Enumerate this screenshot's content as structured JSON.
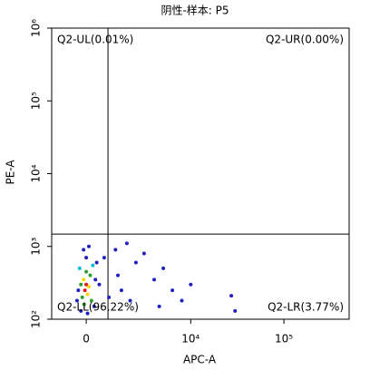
{
  "chart_data": {
    "type": "scatter",
    "title": "阴性-样本: P5",
    "x_label": "APC-A",
    "y_label": "PE-A",
    "xscale": "biexponential",
    "yscale": "log",
    "xlim": [
      -1464,
      500000
    ],
    "ylim": [
      100,
      1000000
    ],
    "xticks": [
      0,
      {
        "value": 10000,
        "label": "10⁴"
      },
      {
        "value": 100000,
        "label": "10⁵"
      }
    ],
    "yticks": [
      {
        "value": 100,
        "label": "10²"
      },
      {
        "value": 1000,
        "label": "10³"
      },
      {
        "value": 10000,
        "label": "10⁴"
      },
      {
        "value": 100000,
        "label": "10⁵"
      },
      {
        "value": 1000000,
        "label": "10⁶"
      }
    ],
    "gate": {
      "x": 860,
      "y": 1480
    },
    "quadrant_labels": {
      "UL": "Q2-UL(0.01%)",
      "UR": "Q2-UR(0.00%)",
      "LL": "Q2-LL(96.22%)",
      "LR": "Q2-LR(3.77%)"
    },
    "points": {
      "x": [
        -50,
        0,
        50,
        -100,
        100,
        -150,
        150,
        -200,
        200,
        0,
        -80,
        -250,
        250,
        -300,
        300,
        0,
        -100,
        100,
        350,
        -350,
        400,
        -200,
        500,
        50,
        1320,
        1500,
        2379,
        2000,
        3940,
        3000,
        6300,
        5000,
        10000,
        8000,
        27350,
        30000,
        1200,
        1800,
        4500,
        900,
        700
      ],
      "y": [
        250,
        300,
        220,
        350,
        280,
        200,
        400,
        300,
        180,
        450,
        160,
        500,
        550,
        250,
        150,
        700,
        900,
        1000,
        350,
        180,
        600,
        130,
        300,
        120,
        400,
        250,
        600,
        180,
        350,
        800,
        250,
        500,
        300,
        180,
        210,
        130,
        900,
        1100,
        150,
        200,
        700
      ],
      "colors": [
        "#e31a1c",
        "#e31a1c",
        "#ffd700",
        "#ffd700",
        "#ffd700",
        "#2ca02c",
        "#2ca02c",
        "#2ca02c",
        "#2ca02c",
        "#2ca02c",
        "#2ca02c",
        "#00bcd4",
        "#00bcd4",
        "#2020c0",
        "#2020c0",
        "#2020c0",
        "#2020c0",
        "#2020c0",
        "#2020c0",
        "#2020c0",
        "#2020c0",
        "#2020c0",
        "#2020c0",
        "#2020c0",
        "#2020c0",
        "#2020c0",
        "#2020c0",
        "#2020c0",
        "#2020c0",
        "#2020c0",
        "#2020c0",
        "#2020c0",
        "#2020c0",
        "#2020c0",
        "#2020c0",
        "#2020c0",
        "#2020c0",
        "#2020c0",
        "#2020c0",
        "#2020c0",
        "#2020c0"
      ]
    }
  }
}
